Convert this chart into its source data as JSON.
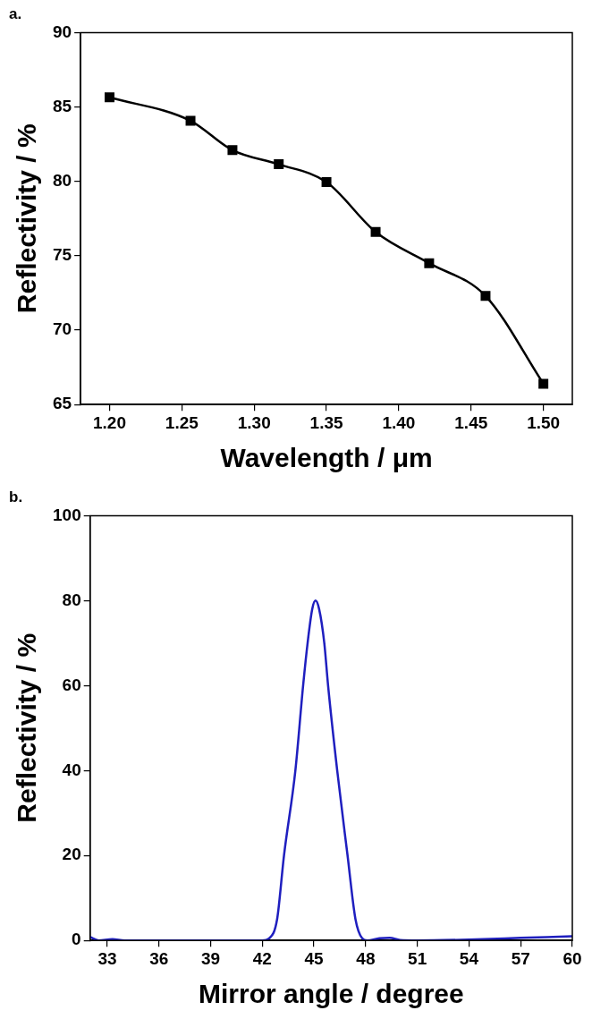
{
  "chart_data": [
    {
      "type": "line",
      "title": "a.",
      "xlabel": "Wavelength / μm",
      "ylabel": "Reflectivity / %",
      "marker": "square",
      "line_style": "solid",
      "grid": false,
      "legend": false,
      "x": [
        1.2,
        1.256,
        1.285,
        1.317,
        1.35,
        1.384,
        1.421,
        1.46,
        1.5
      ],
      "series": [
        {
          "color": "#000000",
          "values": [
            85.65,
            84.07,
            82.1,
            81.15,
            79.95,
            76.6,
            74.5,
            72.3,
            66.4
          ]
        }
      ],
      "xlim": [
        1.18,
        1.52
      ],
      "ylim": [
        65,
        90
      ],
      "xticks": [
        {
          "value": 1.2,
          "label": "1.20"
        },
        {
          "value": 1.25,
          "label": "1.25"
        },
        {
          "value": 1.3,
          "label": "1.30"
        },
        {
          "value": 1.35,
          "label": "1.35"
        },
        {
          "value": 1.4,
          "label": "1.40"
        },
        {
          "value": 1.45,
          "label": "1.45"
        },
        {
          "value": 1.5,
          "label": "1.50"
        }
      ],
      "yticks": [
        65,
        70,
        75,
        80,
        85,
        90
      ]
    },
    {
      "type": "line",
      "title": "b.",
      "xlabel": "Mirror angle / degree",
      "ylabel": "Reflectivity / %",
      "marker": "none",
      "line_style": "solid",
      "grid": false,
      "legend": false,
      "x": [
        32,
        32.5,
        33.3,
        34,
        42,
        42.4,
        42.86,
        43.26,
        43.92,
        44.37,
        44.63,
        44.9,
        45.09,
        45.3,
        45.6,
        45.82,
        46.35,
        46.95,
        47.41,
        47.8,
        48.1,
        48.8,
        49.4,
        50,
        51,
        54,
        57,
        60
      ],
      "series": [
        {
          "color": "#1f1fbf",
          "values": [
            0.8,
            0,
            0.3,
            0,
            0,
            0.5,
            5,
            20,
            40,
            60,
            70,
            78,
            80,
            78,
            70,
            60,
            40,
            20,
            5,
            0.5,
            0,
            0.5,
            0.6,
            0.1,
            0,
            0.2,
            0.6,
            1
          ]
        }
      ],
      "xlim": [
        32,
        60
      ],
      "ylim": [
        0,
        100
      ],
      "xticks": [
        33,
        36,
        39,
        42,
        45,
        48,
        51,
        54,
        57,
        60
      ],
      "yticks": [
        0,
        20,
        40,
        60,
        80,
        100
      ]
    }
  ]
}
